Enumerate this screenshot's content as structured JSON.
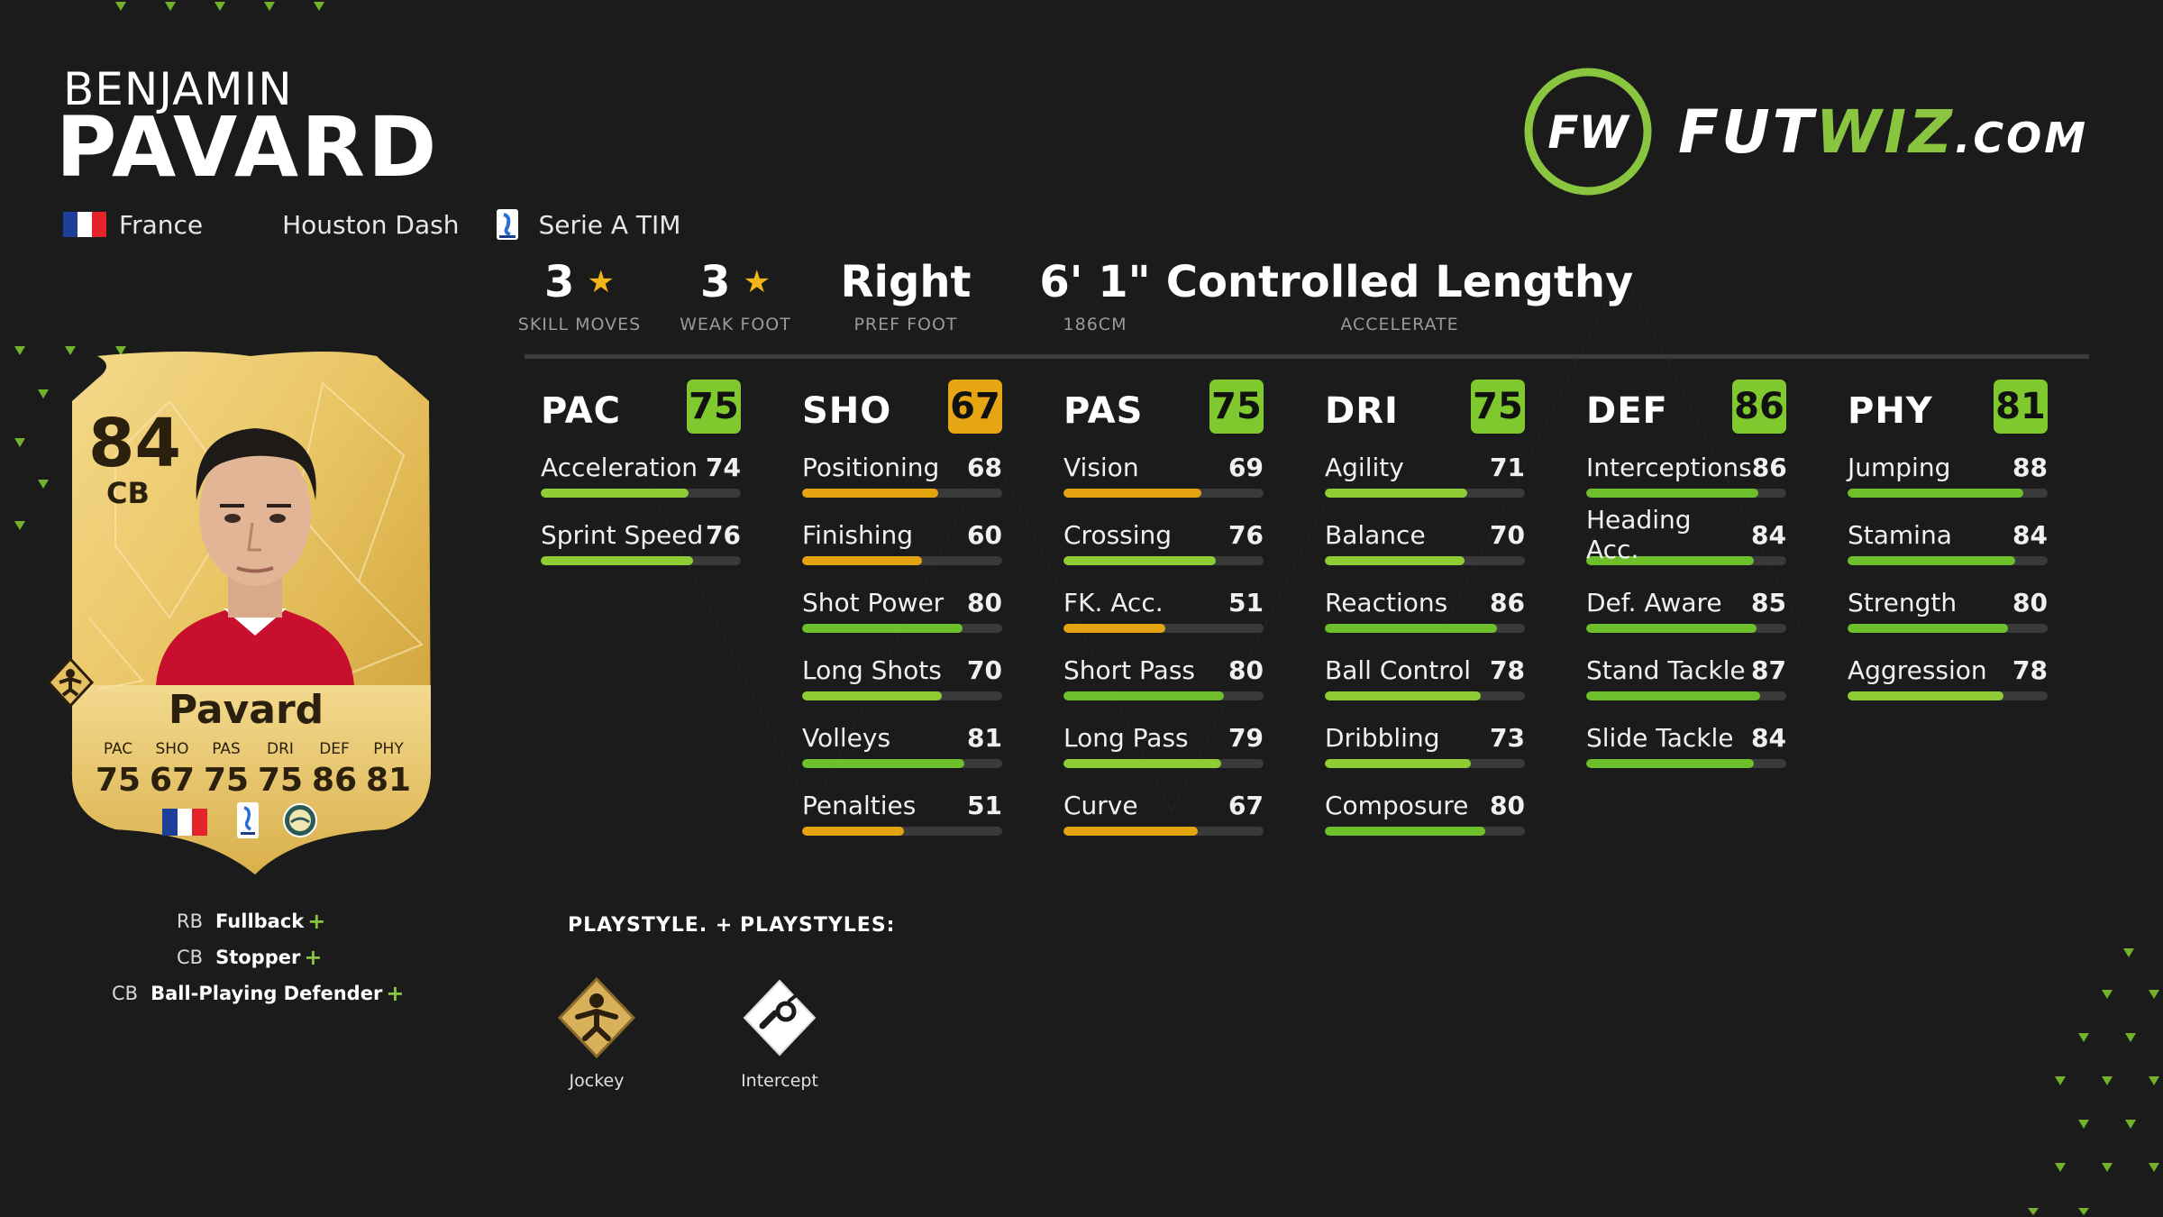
{
  "player": {
    "first_name": "BENJAMIN",
    "last_name": "PAVARD",
    "nation": "France",
    "club": "Houston Dash",
    "league": "Serie A TIM"
  },
  "logo": {
    "part1": "FUT",
    "part2": "WIZ",
    "part3": ".COM",
    "mark": "FW",
    "accent": "#8ac53f"
  },
  "info": [
    {
      "value": "3",
      "label": "SKILL MOVES",
      "star": true
    },
    {
      "value": "3",
      "label": "WEAK FOOT",
      "star": true
    },
    {
      "value": "Right",
      "label": "PREF FOOT",
      "star": false
    },
    {
      "value": "6' 1\"",
      "label": "186CM",
      "star": false
    },
    {
      "value": "Controlled Lengthy",
      "label": "ACCELERATE",
      "star": false
    }
  ],
  "stats": [
    {
      "name": "PAC",
      "value": 75,
      "attrs": [
        {
          "name": "Acceleration",
          "value": 74
        },
        {
          "name": "Sprint Speed",
          "value": 76
        }
      ]
    },
    {
      "name": "SHO",
      "value": 67,
      "attrs": [
        {
          "name": "Positioning",
          "value": 68
        },
        {
          "name": "Finishing",
          "value": 60
        },
        {
          "name": "Shot Power",
          "value": 80
        },
        {
          "name": "Long Shots",
          "value": 70
        },
        {
          "name": "Volleys",
          "value": 81
        },
        {
          "name": "Penalties",
          "value": 51
        }
      ]
    },
    {
      "name": "PAS",
      "value": 75,
      "attrs": [
        {
          "name": "Vision",
          "value": 69
        },
        {
          "name": "Crossing",
          "value": 76
        },
        {
          "name": "FK. Acc.",
          "value": 51
        },
        {
          "name": "Short Pass",
          "value": 80
        },
        {
          "name": "Long Pass",
          "value": 79
        },
        {
          "name": "Curve",
          "value": 67
        }
      ]
    },
    {
      "name": "DRI",
      "value": 75,
      "attrs": [
        {
          "name": "Agility",
          "value": 71
        },
        {
          "name": "Balance",
          "value": 70
        },
        {
          "name": "Reactions",
          "value": 86
        },
        {
          "name": "Ball Control",
          "value": 78
        },
        {
          "name": "Dribbling",
          "value": 73
        },
        {
          "name": "Composure",
          "value": 80
        }
      ]
    },
    {
      "name": "DEF",
      "value": 86,
      "attrs": [
        {
          "name": "Interceptions",
          "value": 86
        },
        {
          "name": "Heading Acc.",
          "value": 84
        },
        {
          "name": "Def. Aware",
          "value": 85
        },
        {
          "name": "Stand Tackle",
          "value": 87
        },
        {
          "name": "Slide Tackle",
          "value": 84
        }
      ]
    },
    {
      "name": "PHY",
      "value": 81,
      "attrs": [
        {
          "name": "Jumping",
          "value": 88
        },
        {
          "name": "Stamina",
          "value": 84
        },
        {
          "name": "Strength",
          "value": 80
        },
        {
          "name": "Aggression",
          "value": 78
        }
      ]
    }
  ],
  "colors": {
    "green": "#6dbf2b",
    "light_green": "#8fcd35",
    "gold": "#e3a40f",
    "badge_green": "#7fc92e",
    "badge_gold": "#e6a614"
  },
  "card": {
    "rating": "84",
    "position": "CB",
    "name": "Pavard",
    "stats": [
      {
        "label": "PAC",
        "value": "75"
      },
      {
        "label": "SHO",
        "value": "67"
      },
      {
        "label": "PAS",
        "value": "75"
      },
      {
        "label": "DRI",
        "value": "75"
      },
      {
        "label": "DEF",
        "value": "86"
      },
      {
        "label": "PHY",
        "value": "81"
      }
    ]
  },
  "roles": [
    {
      "pos": "RB",
      "name": "Fullback",
      "plus": "+"
    },
    {
      "pos": "CB",
      "name": "Stopper",
      "plus": "+"
    },
    {
      "pos": "CB",
      "name": "Ball-Playing Defender",
      "plus": "+"
    }
  ],
  "playstyles": {
    "plus_title": "PLAYSTYLE. +",
    "title": "PLAYSTYLES:",
    "items": [
      {
        "name": "Jockey",
        "icon": "jockey-icon"
      },
      {
        "name": "Intercept",
        "icon": "intercept-icon"
      }
    ]
  }
}
